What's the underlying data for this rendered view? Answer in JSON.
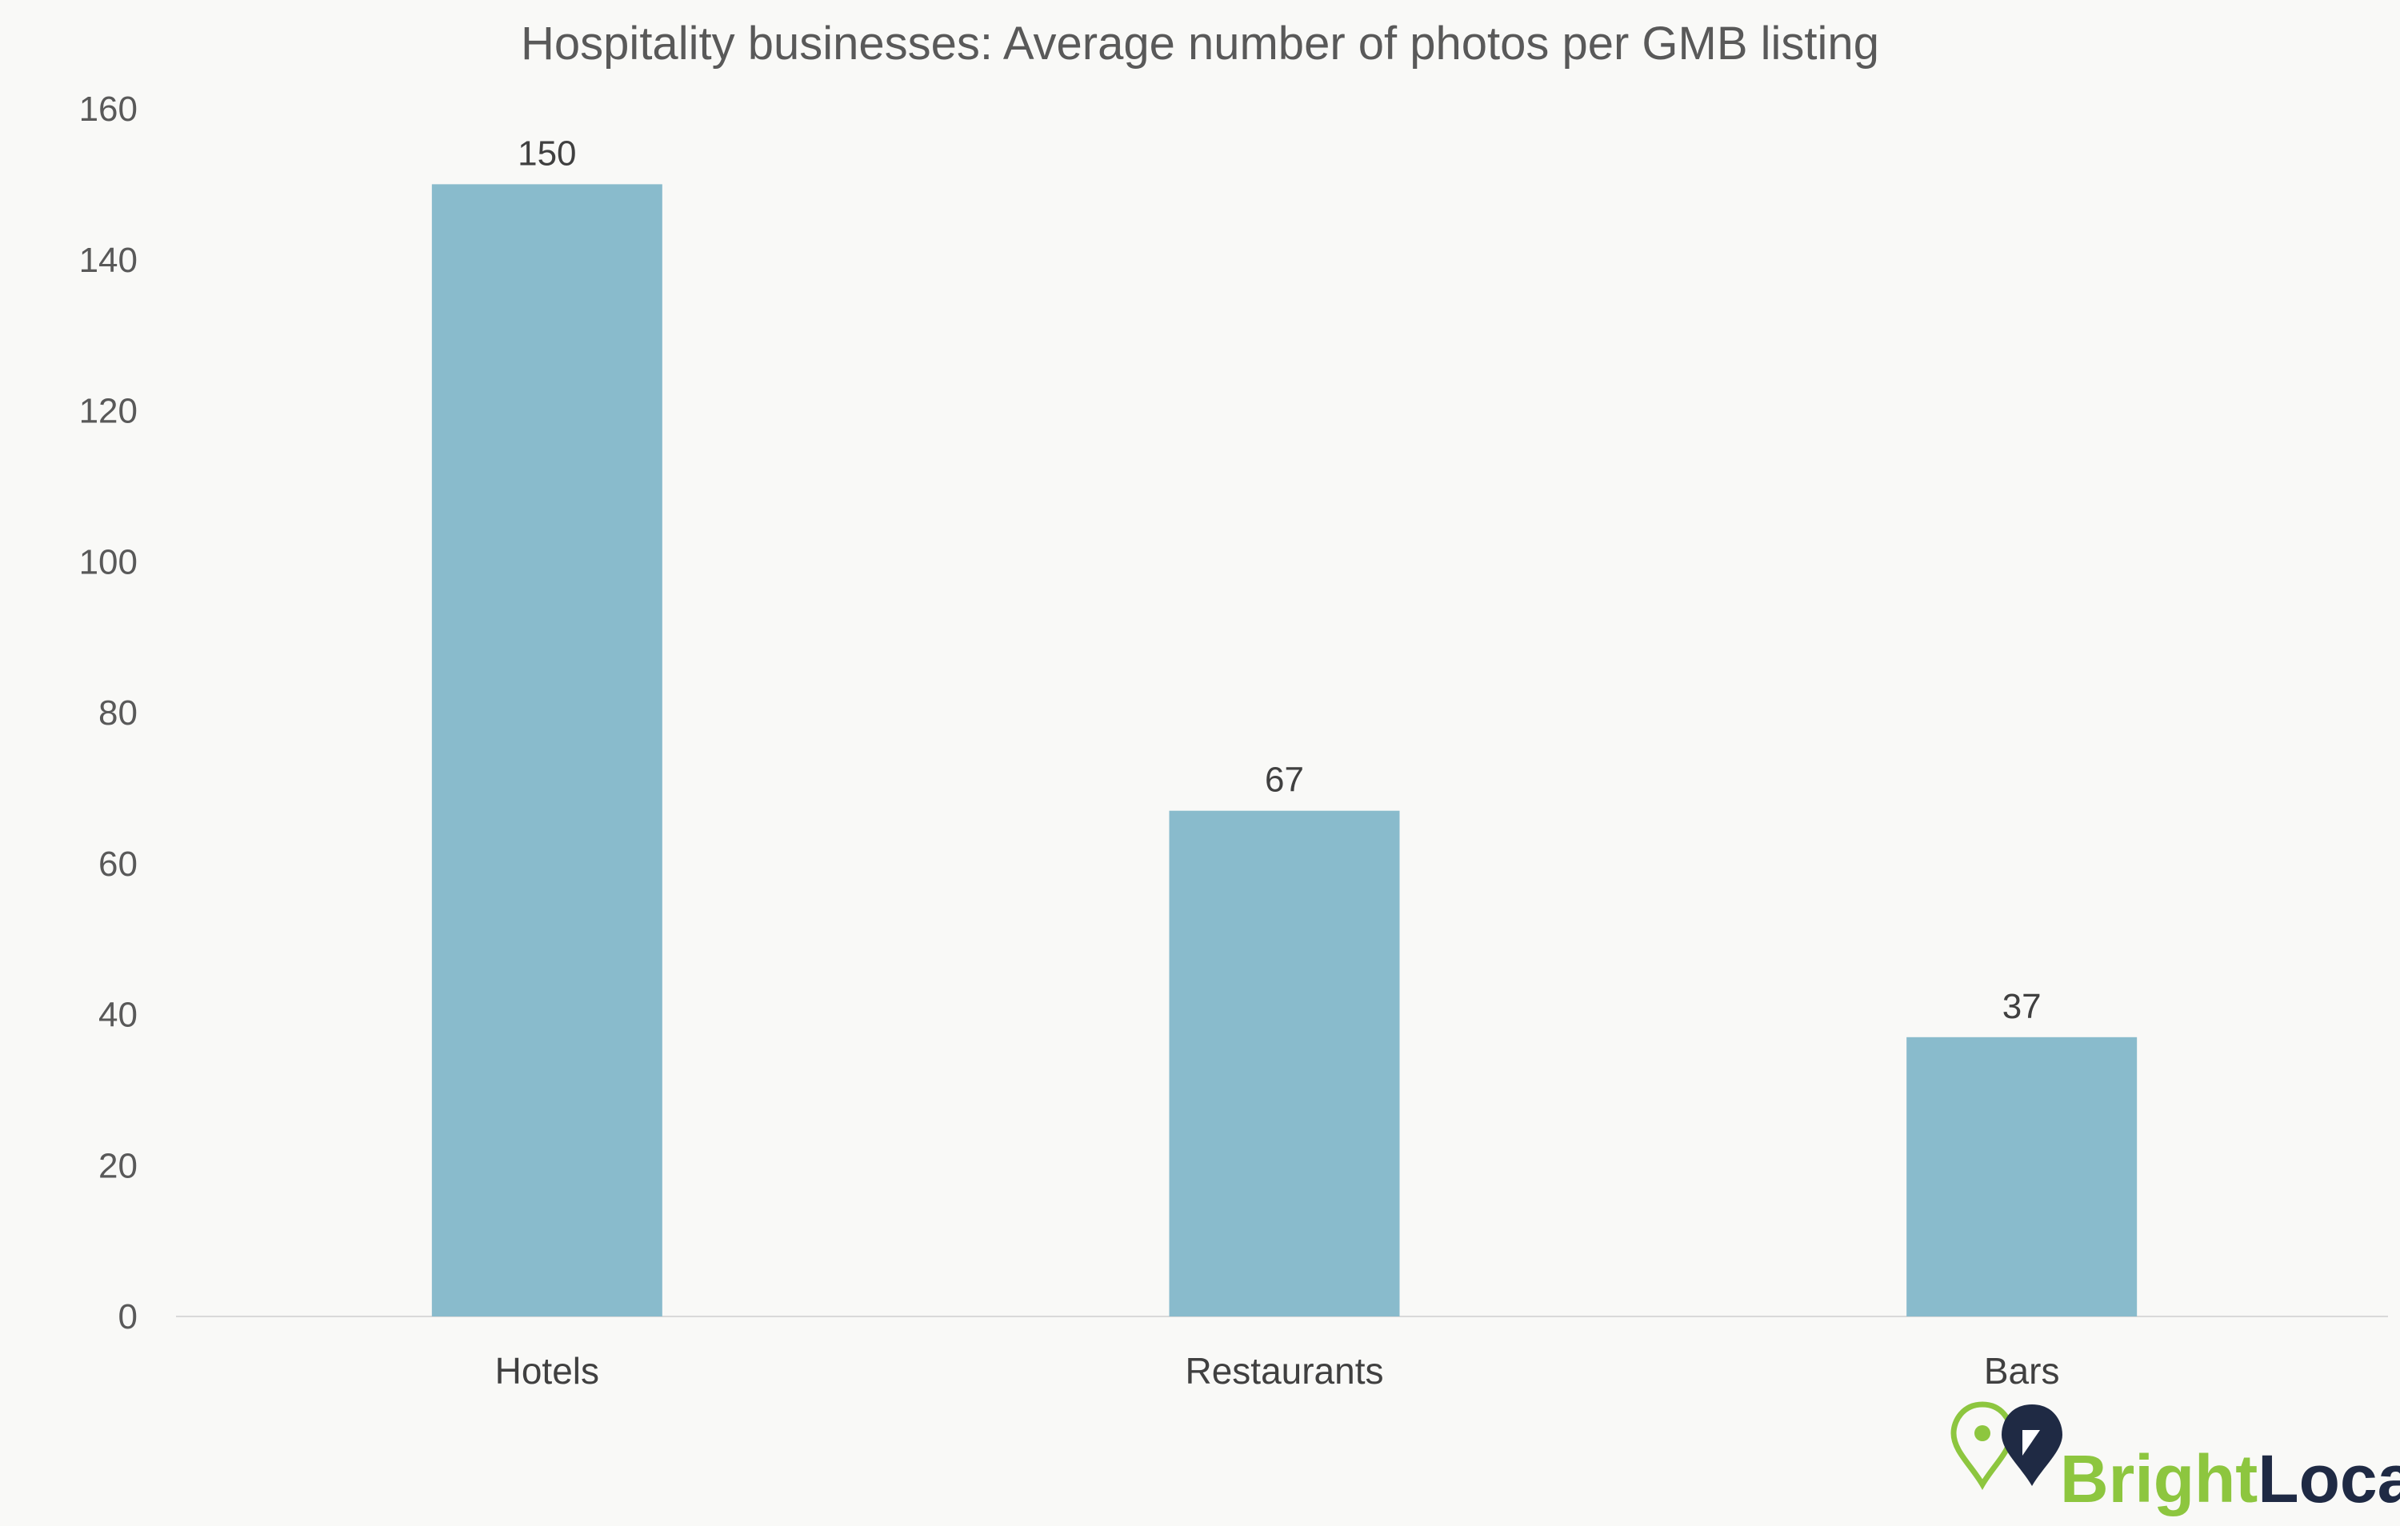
{
  "chart_data": {
    "type": "bar",
    "title": "Hospitality businesses: Average number of photos per GMB listing",
    "categories": [
      "Hotels",
      "Restaurants",
      "Bars"
    ],
    "values": [
      150,
      67,
      37
    ],
    "data_labels": [
      "150",
      "67",
      "37"
    ],
    "xlabel": "",
    "ylabel": "",
    "ylim": [
      0,
      160
    ],
    "yticks": [
      0,
      20,
      40,
      60,
      80,
      100,
      120,
      140,
      160
    ],
    "grid": false,
    "legend": "none",
    "bar_color": "#89bbcc"
  },
  "brand": {
    "name_part1": "Bright",
    "name_part2": "Local",
    "primary_color": "#8dc63f",
    "secondary_color": "#1f2a44",
    "icon": "map-pin-icon"
  }
}
